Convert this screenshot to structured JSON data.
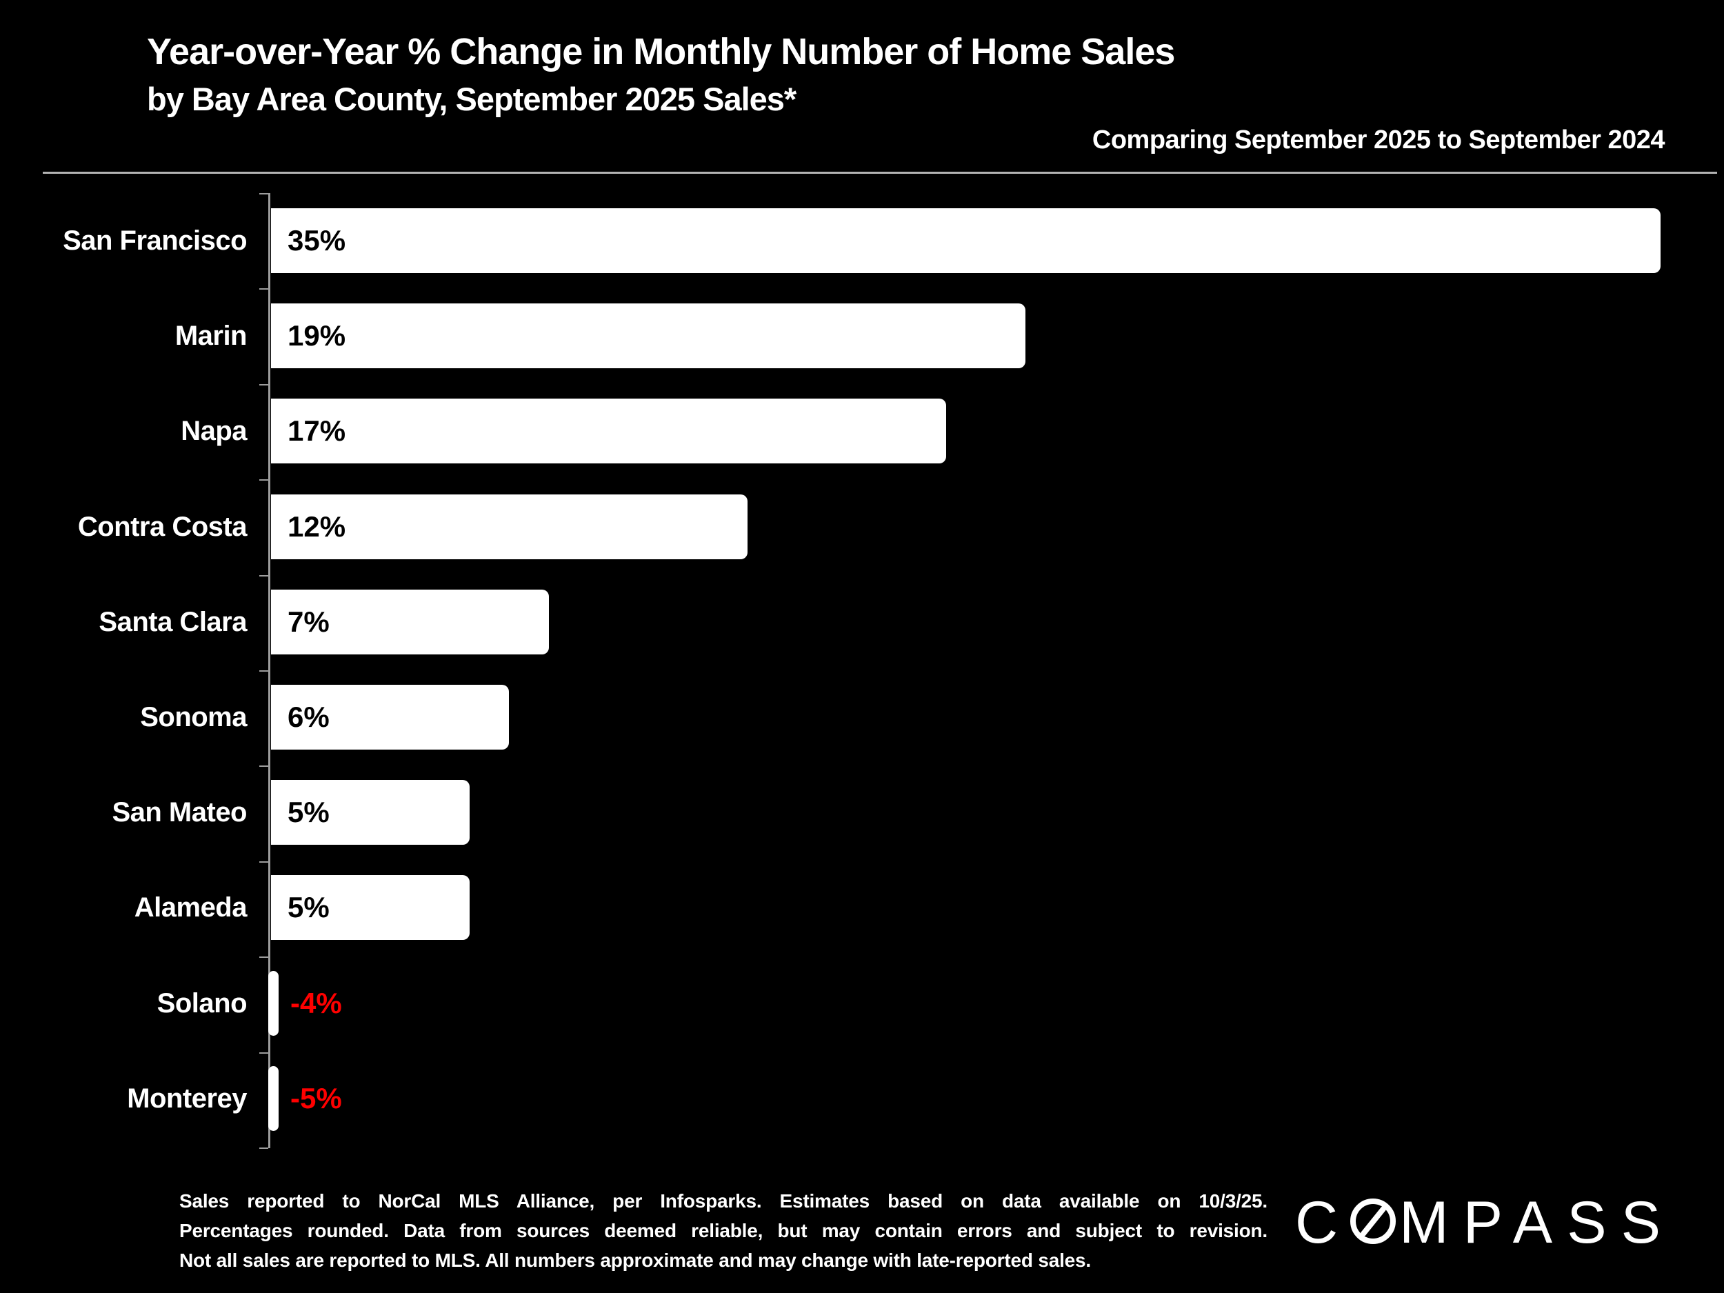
{
  "header": {
    "title_line1": "Year-over-Year % Change in Monthly Number of Home Sales",
    "title_line2": "by Bay Area County, September 2025 Sales*",
    "comparison_note": "Comparing September 2025 to September 2024"
  },
  "chart_data": {
    "type": "bar",
    "orientation": "horizontal",
    "title": "Year-over-Year % Change in Monthly Number of Home Sales by Bay Area County, September 2025 Sales*",
    "subtitle": "Comparing September 2025 to September 2024",
    "categories": [
      "San Francisco",
      "Marin",
      "Napa",
      "Contra Costa",
      "Santa Clara",
      "Sonoma",
      "San Mateo",
      "Alameda",
      "Solano",
      "Monterey"
    ],
    "values": [
      35,
      19,
      17,
      12,
      7,
      6,
      5,
      5,
      -4,
      -5
    ],
    "value_labels": [
      "35%",
      "19%",
      "17%",
      "12%",
      "7%",
      "6%",
      "5%",
      "5%",
      "-4%",
      "-5%"
    ],
    "xlabel": "",
    "ylabel": "",
    "xlim": [
      0,
      35
    ],
    "grid": false,
    "legend_position": "none",
    "bar_color": "#ffffff",
    "positive_label_color": "#000000",
    "negative_label_color": "#ff0000"
  },
  "footer": {
    "lines": [
      "Sales reported to NorCal MLS Alliance, per Infosparks. Estimates based on data available on 10/3/25.",
      "Percentages rounded. Data from sources deemed reliable, but may contain errors and subject to revision.",
      "Not all sales are reported to MLS. All numbers approximate and may change with late-reported sales."
    ],
    "logo_text": "COMPASS"
  },
  "colors": {
    "background": "#000000",
    "bar": "#ffffff",
    "axis": "#9d9d9d",
    "divider": "#b3b3b3",
    "negative_value": "#ff0000"
  }
}
